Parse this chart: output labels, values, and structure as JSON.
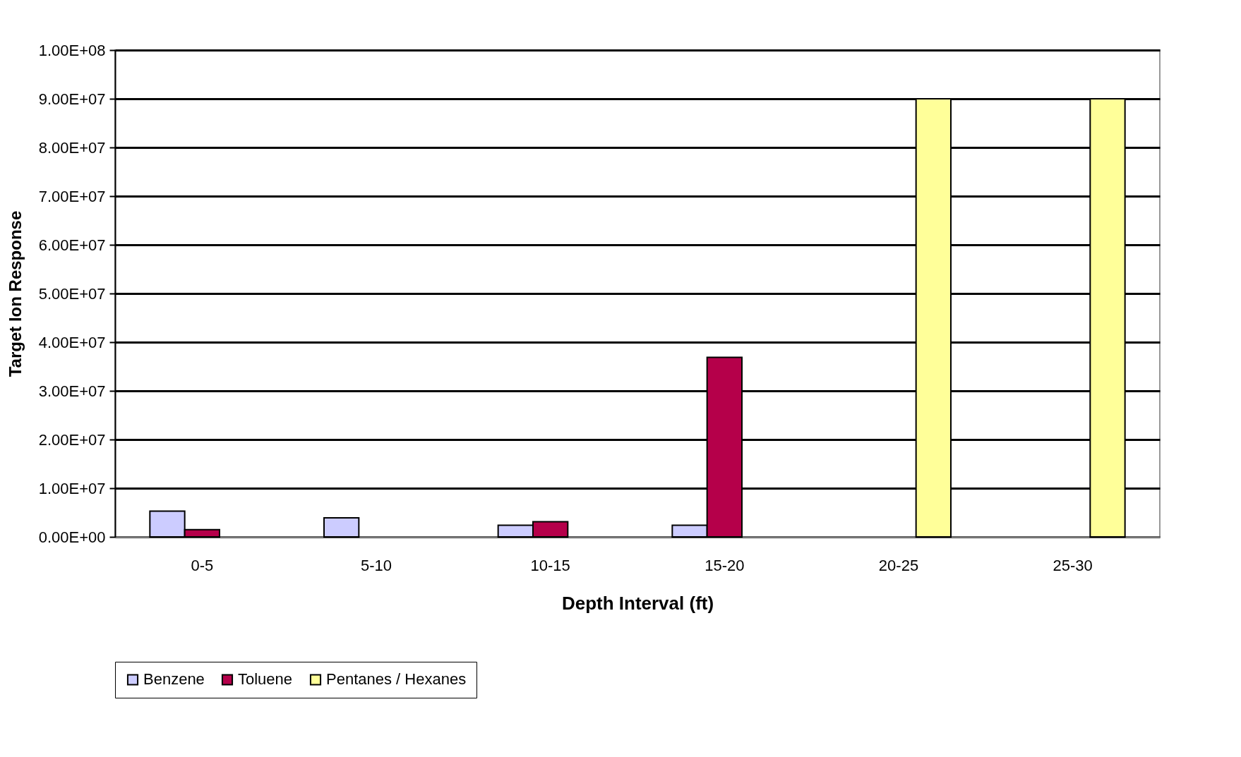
{
  "chart_data": {
    "type": "bar",
    "xlabel": "Depth Interval (ft)",
    "ylabel": "Target Ion Response",
    "categories": [
      "0-5",
      "5-10",
      "10-15",
      "15-20",
      "20-25",
      "25-30"
    ],
    "series": [
      {
        "name": "Benzene",
        "color": "#ccccff",
        "values": [
          5300000,
          3900000,
          2400000,
          2400000,
          null,
          null
        ]
      },
      {
        "name": "Toluene",
        "color": "#b5004a",
        "values": [
          1500000,
          null,
          3100000,
          36900000,
          null,
          null
        ]
      },
      {
        "name": "Pentanes / Hexanes",
        "color": "#ffff99",
        "values": [
          null,
          null,
          null,
          null,
          90000000,
          90000000
        ]
      }
    ],
    "ylim": [
      0,
      100000000
    ],
    "yticks": [
      {
        "value": 0,
        "label": "0.00E+00"
      },
      {
        "value": 10000000,
        "label": "1.00E+07"
      },
      {
        "value": 20000000,
        "label": "2.00E+07"
      },
      {
        "value": 30000000,
        "label": "3.00E+07"
      },
      {
        "value": 40000000,
        "label": "4.00E+07"
      },
      {
        "value": 50000000,
        "label": "5.00E+07"
      },
      {
        "value": 60000000,
        "label": "6.00E+07"
      },
      {
        "value": 70000000,
        "label": "7.00E+07"
      },
      {
        "value": 80000000,
        "label": "8.00E+07"
      },
      {
        "value": 90000000,
        "label": "9.00E+07"
      },
      {
        "value": 100000000,
        "label": "1.00E+08"
      }
    ],
    "grid": "y",
    "legend": "bottom"
  }
}
